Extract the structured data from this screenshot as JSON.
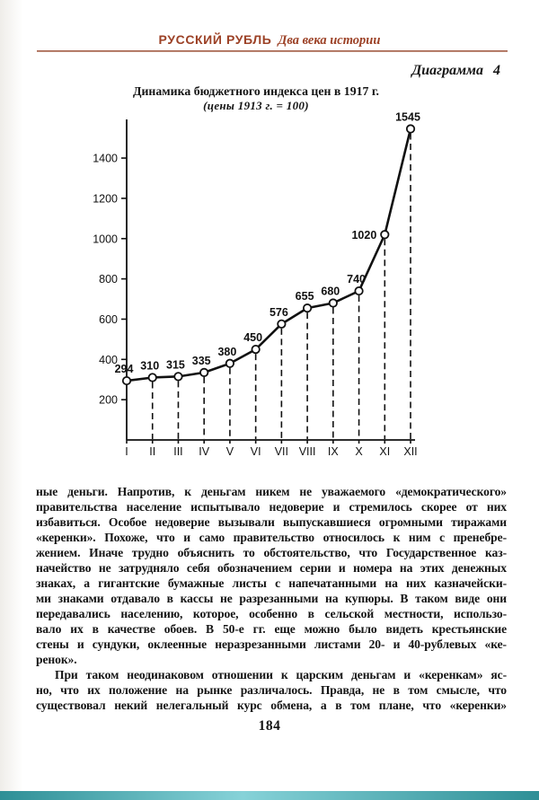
{
  "page": {
    "header_title": "РУССКИЙ РУБЛЬ",
    "header_subtitle": "Два века истории",
    "figure_label": "Диаграмма 4",
    "page_number": "184"
  },
  "colors": {
    "header_accent": "#9c4126",
    "head_rule": "#a05a44",
    "footer_bar": [
      "#2e8f96",
      "#86d2d8",
      "#2e8f96"
    ]
  },
  "chart_data": {
    "type": "line",
    "title": "Динамика бюджетного индекса цен в 1917 г.",
    "subtitle": "(цены 1913 г. = 100)",
    "categories": [
      "I",
      "II",
      "III",
      "IV",
      "V",
      "VI",
      "VII",
      "VIII",
      "IX",
      "X",
      "XI",
      "XII"
    ],
    "values": [
      294,
      310,
      315,
      335,
      380,
      450,
      576,
      655,
      680,
      740,
      1020,
      1545
    ],
    "yticks": [
      200,
      400,
      600,
      800,
      1000,
      1200,
      1400
    ],
    "ylim": [
      0,
      1590
    ],
    "grid": false,
    "legend": false,
    "marker": "open-circle",
    "guides": "dashed vertical line from each point down to x-axis"
  },
  "body": {
    "para1": [
      "ные деньги. Напротив, к деньгам никем не уважаемого «демократического»",
      "правительства население испытывало недоверие и стремилось скорее от них",
      "избавиться. Особое недоверие вызывали выпускавшиеся огромными тиражами",
      "«керенки». Похоже, что и само правительство относилось к ним с пренебре-",
      "жением. Иначе трудно объяснить то обстоятельство, что Государственное каз-",
      "начейство не затрудняло себя обозначением серии и номера на этих денежных",
      "знаках, а гигантские бумажные листы с напечатанными на них казначейски-",
      "ми знаками отдавало в кассы не разрезанными на купюры. В таком виде они",
      "передавались населению, которое, особенно в сельской местности, использо-",
      "вало их в качестве обоев. В 50-е гг. еще можно было видеть крестьянские",
      "стены и сундуки, оклеенные неразрезанными листами 20- и 40-рублевых «ке-",
      "ренок»."
    ],
    "para2": [
      "При таком неодинаковом отношении к царским деньгам и «керенкам» яс-",
      "но, что их положение на рынке различалось. Правда, не в том смысле, что",
      "существовал некий нелегальный курс обмена, а в том плане, что «керенки»"
    ]
  }
}
